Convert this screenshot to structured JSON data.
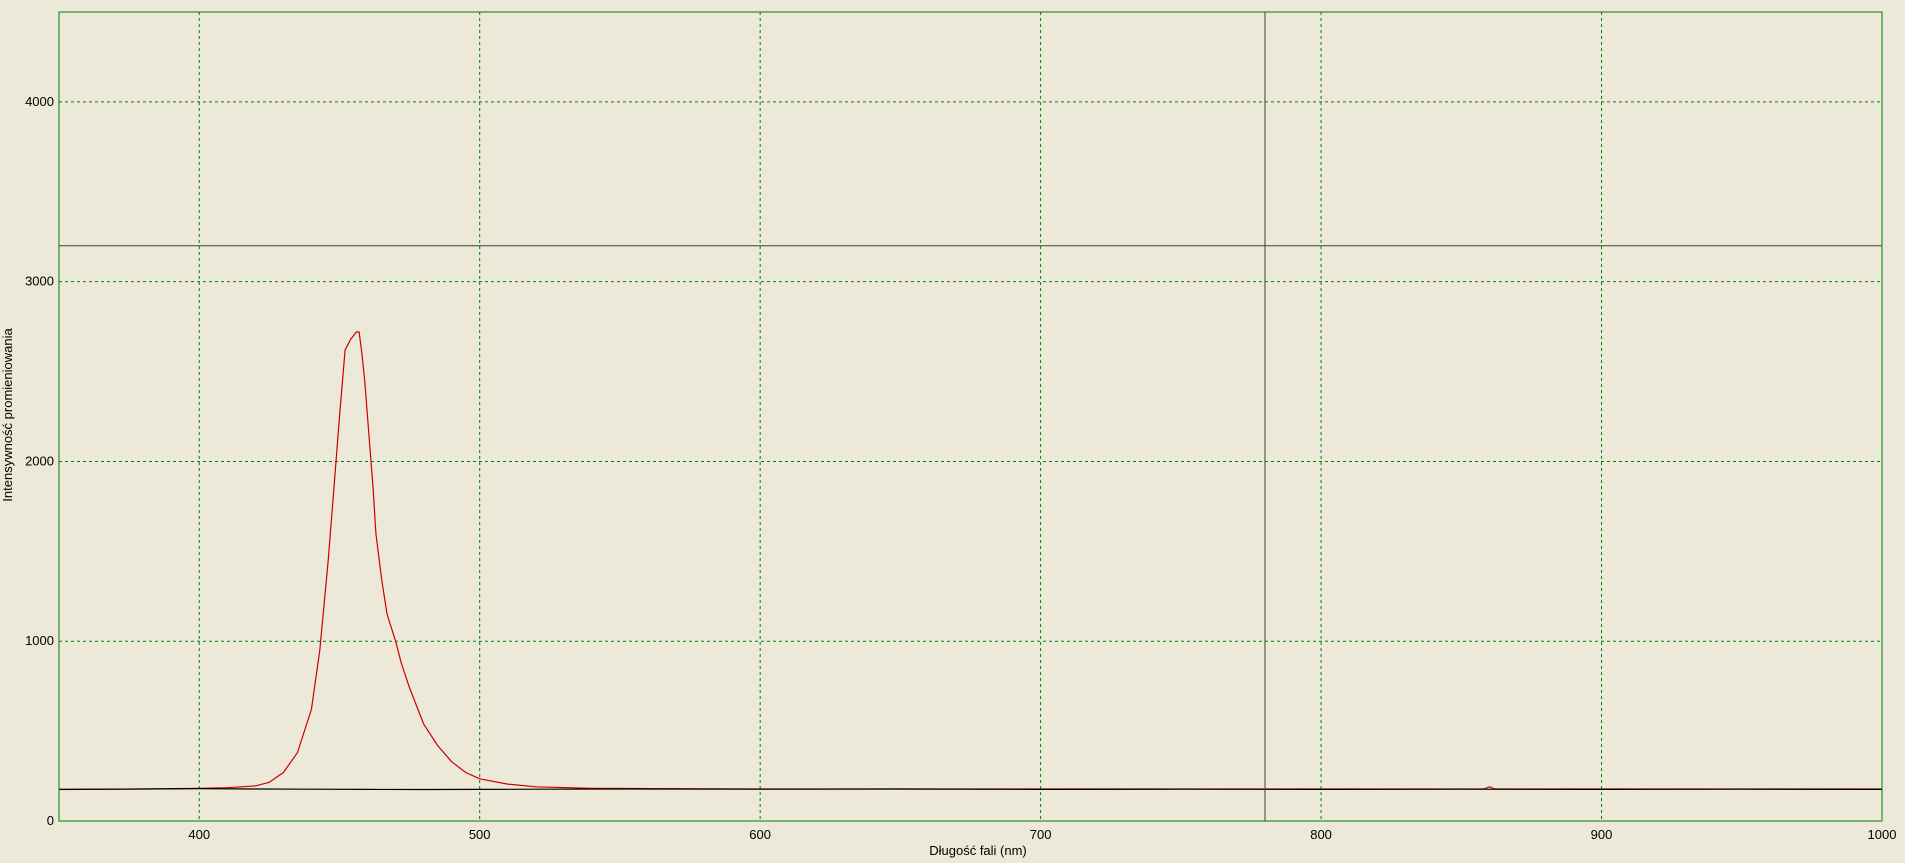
{
  "colors": {
    "background": "#ece9d8",
    "frame": "#008000",
    "grid": "#008000",
    "cursor": "#404040",
    "series_red": "#cc0000",
    "series_black": "#000000"
  },
  "chart_data": {
    "type": "line",
    "title": "",
    "xlabel": "Długość fali (nm)",
    "ylabel": "Intensywność promieniowania",
    "xlim": [
      350,
      1000
    ],
    "ylim": [
      0,
      4500
    ],
    "x_ticks": [
      400,
      500,
      600,
      700,
      800,
      900,
      1000
    ],
    "x_tick_labels": [
      "400",
      "500",
      "600",
      "700",
      "800",
      "900",
      "1000"
    ],
    "y_ticks": [
      0,
      1000,
      2000,
      3000,
      4000
    ],
    "y_tick_labels": [
      "0",
      "1000",
      "2000",
      "3000",
      "4000"
    ],
    "grid": true,
    "legend": "none",
    "cursor": {
      "x": 780,
      "y": 3200
    },
    "series": [
      {
        "color": "#cc0000",
        "x": [
          350,
          380,
          400,
          410,
          420,
          425,
          430,
          435,
          440,
          443,
          446,
          448,
          450,
          452,
          454,
          455,
          456,
          457,
          458,
          459,
          460,
          461,
          462,
          463,
          465,
          467,
          470,
          472,
          475,
          478,
          480,
          485,
          490,
          495,
          500,
          510,
          520,
          540,
          560,
          600,
          700,
          800,
          858,
          860,
          862,
          900,
          1000
        ],
        "y": [
          175,
          178,
          182,
          185,
          195,
          215,
          270,
          380,
          620,
          950,
          1450,
          1850,
          2250,
          2620,
          2680,
          2700,
          2720,
          2720,
          2600,
          2450,
          2250,
          2050,
          1850,
          1600,
          1350,
          1150,
          1000,
          880,
          740,
          620,
          540,
          420,
          330,
          270,
          235,
          205,
          190,
          182,
          180,
          178,
          178,
          178,
          178,
          190,
          178,
          178,
          178
        ]
      },
      {
        "color": "#000000",
        "x": [
          350,
          380,
          400,
          420,
          440,
          460,
          480,
          500,
          520,
          550,
          600,
          650,
          700,
          750,
          800,
          850,
          900,
          950,
          1000
        ],
        "y": [
          176,
          178,
          180,
          178,
          177,
          176,
          175,
          176,
          177,
          178,
          177,
          178,
          176,
          177,
          176,
          177,
          176,
          177,
          176
        ]
      }
    ]
  }
}
